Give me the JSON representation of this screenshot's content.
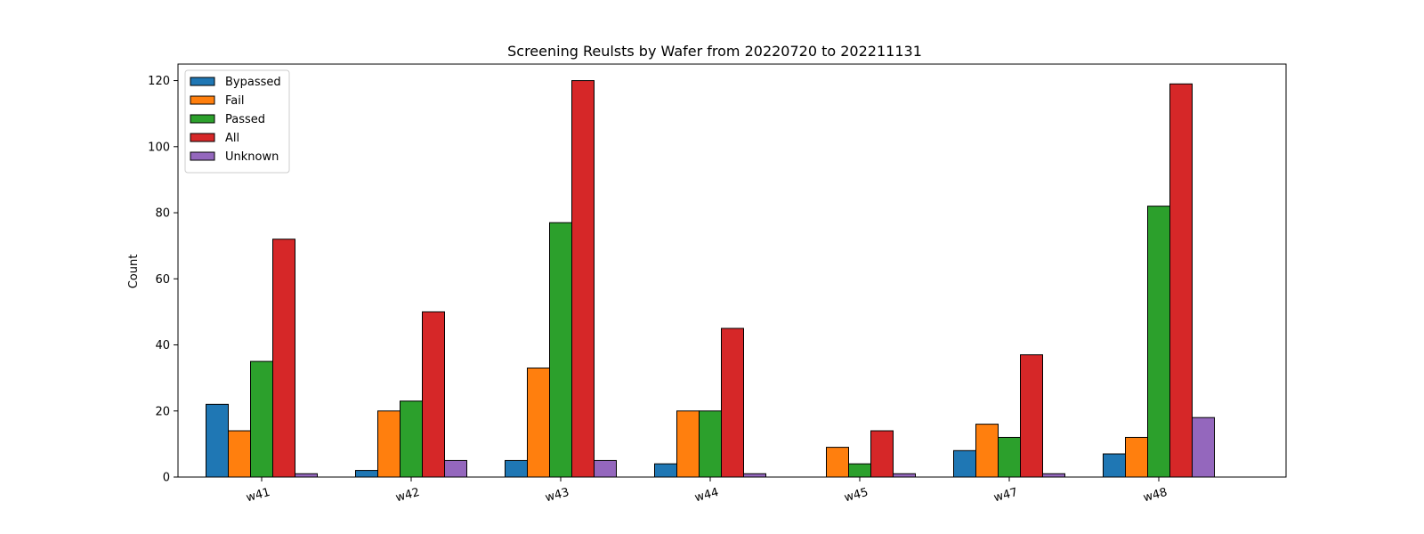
{
  "chart_data": {
    "type": "bar",
    "title": "Screening Reulsts by Wafer from 20220720 to 202211131",
    "xlabel": "",
    "ylabel": "Count",
    "ylim": [
      0,
      125
    ],
    "yticks": [
      0,
      20,
      40,
      60,
      80,
      100,
      120
    ],
    "grid": false,
    "legend_position": "top-left",
    "categories": [
      "w41",
      "w42",
      "w43",
      "w44",
      "w45",
      "w47",
      "w48"
    ],
    "series": [
      {
        "name": "Bypassed",
        "color": "#1f77b4",
        "values": [
          22,
          2,
          5,
          4,
          0,
          8,
          7
        ]
      },
      {
        "name": "Fail",
        "color": "#ff7f0e",
        "values": [
          14,
          20,
          33,
          20,
          9,
          16,
          12
        ]
      },
      {
        "name": "Passed",
        "color": "#2ca02c",
        "values": [
          35,
          23,
          77,
          20,
          4,
          12,
          82
        ]
      },
      {
        "name": "All",
        "color": "#d62728",
        "values": [
          72,
          50,
          120,
          45,
          14,
          37,
          119
        ]
      },
      {
        "name": "Unknown",
        "color": "#9467bd",
        "values": [
          1,
          5,
          5,
          1,
          1,
          1,
          18
        ]
      }
    ]
  }
}
